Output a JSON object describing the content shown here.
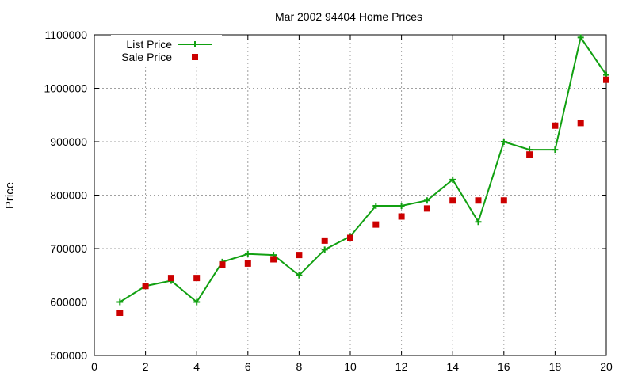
{
  "chart_data": {
    "type": "line",
    "title": "Mar 2002 94404 Home Prices",
    "xlabel": "",
    "ylabel": "Price",
    "xlim": [
      0,
      20
    ],
    "ylim": [
      500000,
      1100000
    ],
    "xticks": [
      0,
      2,
      4,
      6,
      8,
      10,
      12,
      14,
      16,
      18,
      20
    ],
    "yticks": [
      500000,
      600000,
      700000,
      800000,
      900000,
      1000000,
      1100000
    ],
    "xtick_labels": [
      "0",
      "2",
      "4",
      "6",
      "8",
      "10",
      "12",
      "14",
      "16",
      "18",
      "20"
    ],
    "ytick_labels": [
      "500000",
      "600000",
      "700000",
      "800000",
      "900000",
      "1000000",
      "1100000"
    ],
    "grid": true,
    "legend_position": "top-left",
    "series": [
      {
        "name": "List Price",
        "style": "line+plus-markers",
        "color": "#11a011",
        "x": [
          1,
          2,
          3,
          4,
          5,
          6,
          7,
          8,
          9,
          10,
          11,
          12,
          13,
          14,
          15,
          16,
          17,
          18,
          19,
          20
        ],
        "y": [
          600000,
          630000,
          640000,
          600000,
          675000,
          690000,
          688000,
          650000,
          698000,
          723000,
          780000,
          780000,
          790000,
          829000,
          750000,
          900000,
          885000,
          885000,
          1095000,
          1025000
        ]
      },
      {
        "name": "Sale Price",
        "style": "square-markers",
        "color": "#cc0000",
        "x": [
          1,
          2,
          3,
          4,
          5,
          6,
          7,
          8,
          9,
          10,
          11,
          12,
          13,
          14,
          15,
          16,
          17,
          18,
          19,
          20
        ],
        "y": [
          580000,
          630000,
          645000,
          645000,
          670000,
          672000,
          680000,
          688000,
          715000,
          720000,
          745000,
          760000,
          775000,
          790000,
          790000,
          790000,
          876000,
          930000,
          935000,
          1016000
        ]
      }
    ]
  }
}
